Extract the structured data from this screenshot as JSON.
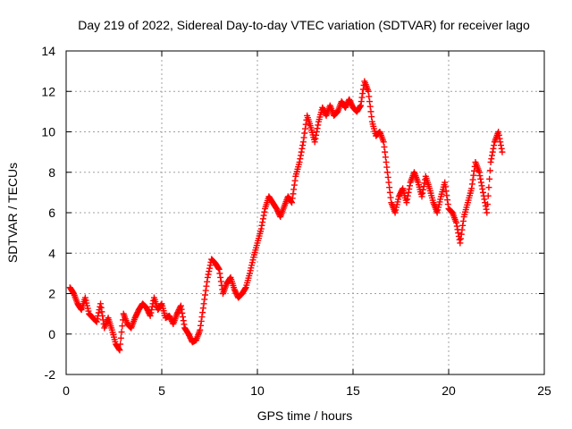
{
  "chart_data": {
    "type": "scatter",
    "title": "Day 219 of 2022, Sidereal Day-to-day VTEC variation (SDTVAR) for receiver lago",
    "xlabel": "GPS time / hours",
    "ylabel": "SDTVAR / TECUs",
    "xlim": [
      0,
      25
    ],
    "ylim": [
      -2,
      14
    ],
    "xticks": [
      0,
      5,
      10,
      15,
      20,
      25
    ],
    "yticks": [
      -2,
      0,
      2,
      4,
      6,
      8,
      10,
      12,
      14
    ],
    "grid": true,
    "legend": "none",
    "marker": "+",
    "color": "#ff0000",
    "series": [
      {
        "name": "SDTVAR",
        "x": [
          0.2,
          0.4,
          0.6,
          0.8,
          1.0,
          1.2,
          1.4,
          1.6,
          1.8,
          2.0,
          2.2,
          2.4,
          2.6,
          2.8,
          3.0,
          3.2,
          3.4,
          3.6,
          3.8,
          4.0,
          4.2,
          4.4,
          4.6,
          4.8,
          5.0,
          5.2,
          5.4,
          5.6,
          5.8,
          6.0,
          6.2,
          6.4,
          6.6,
          6.8,
          7.0,
          7.2,
          7.4,
          7.6,
          7.8,
          8.0,
          8.2,
          8.4,
          8.6,
          8.8,
          9.0,
          9.2,
          9.4,
          9.6,
          9.8,
          10.0,
          10.2,
          10.4,
          10.6,
          10.8,
          11.0,
          11.2,
          11.4,
          11.6,
          11.8,
          12.0,
          12.2,
          12.4,
          12.6,
          12.8,
          13.0,
          13.2,
          13.4,
          13.6,
          13.8,
          14.0,
          14.2,
          14.4,
          14.6,
          14.8,
          15.0,
          15.2,
          15.4,
          15.6,
          15.8,
          16.0,
          16.2,
          16.4,
          16.6,
          16.8,
          17.0,
          17.2,
          17.4,
          17.6,
          17.8,
          18.0,
          18.2,
          18.4,
          18.6,
          18.8,
          19.0,
          19.2,
          19.4,
          19.6,
          19.8,
          20.0,
          20.2,
          20.4,
          20.6,
          20.8,
          21.0,
          21.2,
          21.4,
          21.6,
          21.8,
          22.0,
          22.2,
          22.4,
          22.6,
          22.8
        ],
        "y": [
          2.3,
          2.0,
          1.5,
          1.2,
          1.8,
          1.0,
          0.8,
          0.6,
          1.5,
          0.3,
          0.8,
          0.2,
          -0.5,
          -0.8,
          1.0,
          0.5,
          0.3,
          0.8,
          1.2,
          1.5,
          1.3,
          0.9,
          1.8,
          1.2,
          1.5,
          0.8,
          0.9,
          0.5,
          1.0,
          1.4,
          0.3,
          0.0,
          -0.4,
          -0.3,
          0.2,
          1.5,
          2.8,
          3.7,
          3.5,
          3.2,
          2.0,
          2.5,
          2.8,
          2.2,
          1.8,
          2.0,
          2.3,
          3.0,
          3.8,
          4.5,
          5.2,
          6.2,
          6.8,
          6.5,
          6.2,
          5.8,
          6.3,
          6.8,
          6.5,
          7.8,
          8.5,
          9.5,
          10.8,
          10.2,
          9.5,
          10.5,
          11.2,
          10.8,
          11.3,
          10.8,
          11.0,
          11.5,
          11.2,
          11.6,
          11.2,
          11.0,
          11.3,
          12.5,
          12.0,
          10.5,
          9.8,
          10.0,
          9.5,
          8.0,
          6.5,
          6.0,
          6.8,
          7.2,
          6.5,
          7.5,
          8.0,
          7.5,
          6.8,
          7.8,
          7.2,
          6.5,
          6.0,
          6.8,
          7.5,
          6.2,
          6.0,
          5.5,
          4.5,
          5.8,
          6.5,
          7.2,
          8.5,
          8.0,
          7.0,
          6.0,
          8.5,
          9.5,
          10.0,
          9.0
        ]
      }
    ]
  }
}
